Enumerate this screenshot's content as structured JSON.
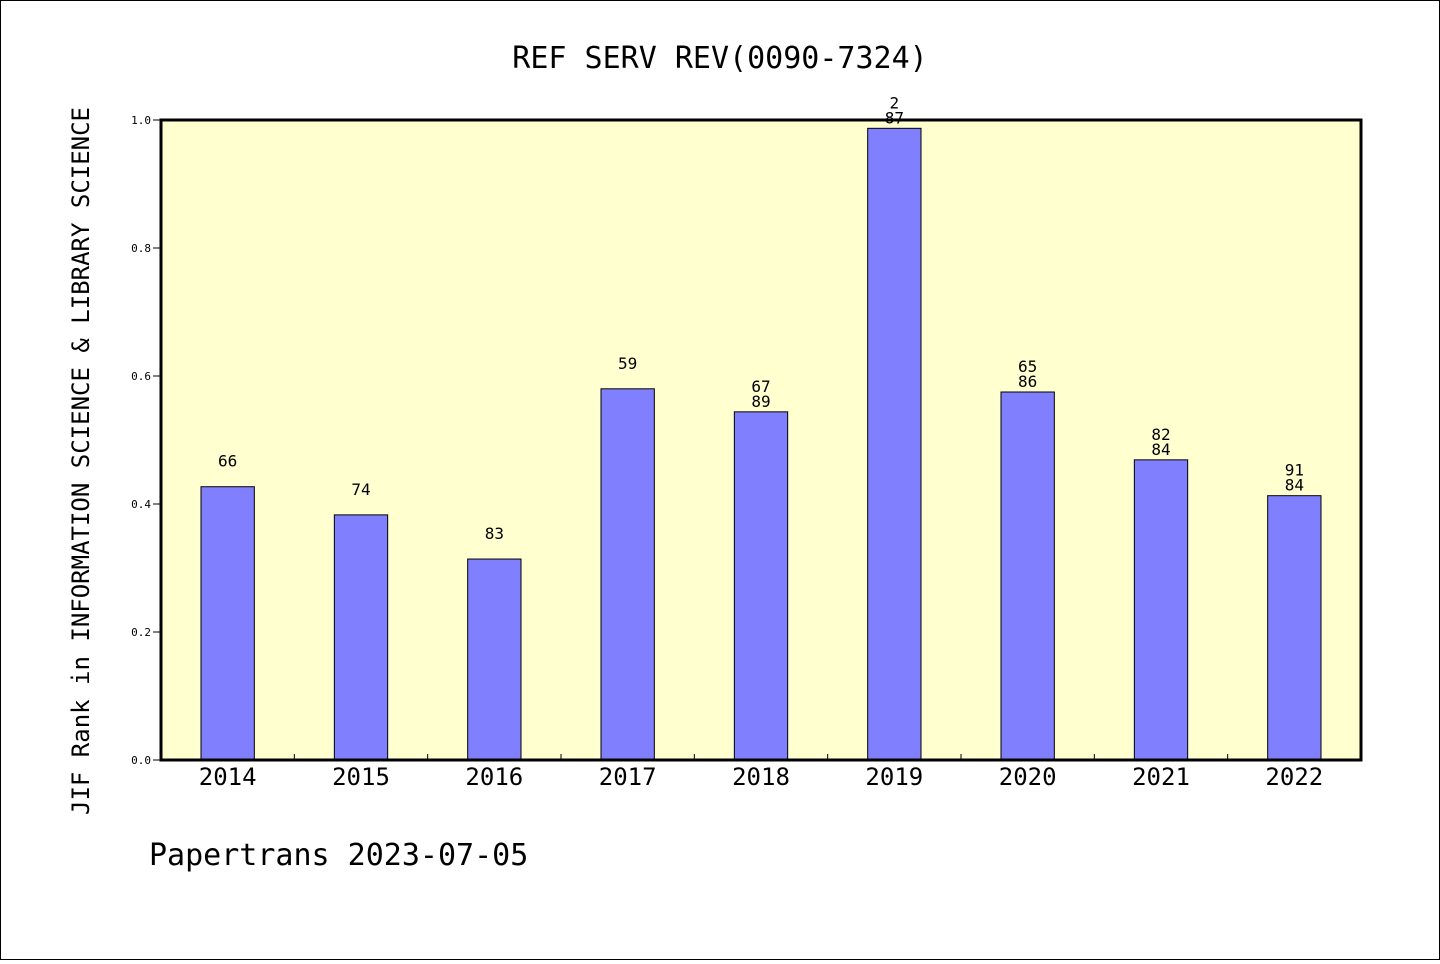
{
  "chart_data": {
    "type": "bar",
    "title": "REF SERV REV(0090-7324)",
    "xlabel": "",
    "ylabel": "JIF Rank in INFORMATION SCIENCE & LIBRARY SCIENCE",
    "footer": "Papertrans 2023-07-05",
    "categories": [
      "2014",
      "2015",
      "2016",
      "2017",
      "2018",
      "2019",
      "2020",
      "2021",
      "2022"
    ],
    "values": [
      0.427,
      0.383,
      0.314,
      0.58,
      0.544,
      0.987,
      0.575,
      0.469,
      0.413
    ],
    "labels": [
      [
        "66"
      ],
      [
        "74"
      ],
      [
        "83"
      ],
      [
        "59"
      ],
      [
        "67",
        "89"
      ],
      [
        "2",
        "87"
      ],
      [
        "65",
        "86"
      ],
      [
        "82",
        "84"
      ],
      [
        "91",
        "84"
      ]
    ],
    "ylim": [
      0,
      1.0
    ],
    "yticks": [
      "0.0",
      "0.2",
      "0.4",
      "0.6",
      "0.8",
      "1.0"
    ],
    "grid": false,
    "colors": {
      "bar": "#8080ff",
      "plot_background": "#ffffd0",
      "axes": "#000000"
    }
  }
}
